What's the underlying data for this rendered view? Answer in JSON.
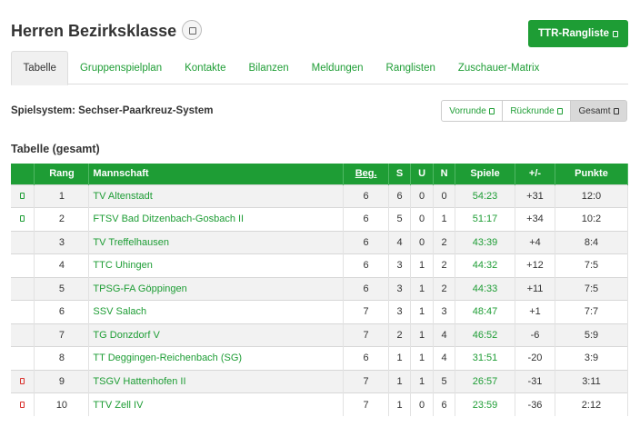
{
  "header": {
    "title": "Herren Bezirksklasse",
    "ttr_button_label": "TTR-Rangliste"
  },
  "tabs": [
    {
      "label": "Tabelle",
      "active": true
    },
    {
      "label": "Gruppenspielplan"
    },
    {
      "label": "Kontakte"
    },
    {
      "label": "Bilanzen"
    },
    {
      "label": "Meldungen"
    },
    {
      "label": "Ranglisten"
    },
    {
      "label": "Zuschauer-Matrix"
    }
  ],
  "spielsystem": "Spielsystem: Sechser-Paarkreuz-System",
  "filter": {
    "vorrunde": "Vorrunde",
    "rueckrunde": "Rückrunde",
    "gesamt": "Gesamt"
  },
  "section_title": "Tabelle (gesamt)",
  "table": {
    "columns": [
      "Rang",
      "Mannschaft",
      "Beg.",
      "S",
      "U",
      "N",
      "Spiele",
      "+/-",
      "Punkte"
    ],
    "rows": [
      {
        "rang": "1",
        "team": "TV Altenstadt",
        "beg": "6",
        "s": "6",
        "u": "0",
        "n": "0",
        "spiele": "54:23",
        "diff": "+31",
        "punkte": "12:0",
        "flag": "up"
      },
      {
        "rang": "2",
        "team": "FTSV Bad Ditzenbach-Gosbach II",
        "beg": "6",
        "s": "5",
        "u": "0",
        "n": "1",
        "spiele": "51:17",
        "diff": "+34",
        "punkte": "10:2",
        "flag": "up"
      },
      {
        "rang": "3",
        "team": "TV Treffelhausen",
        "beg": "6",
        "s": "4",
        "u": "0",
        "n": "2",
        "spiele": "43:39",
        "diff": "+4",
        "punkte": "8:4",
        "flag": ""
      },
      {
        "rang": "4",
        "team": "TTC Uhingen",
        "beg": "6",
        "s": "3",
        "u": "1",
        "n": "2",
        "spiele": "44:32",
        "diff": "+12",
        "punkte": "7:5",
        "flag": ""
      },
      {
        "rang": "5",
        "team": "TPSG-FA Göppingen",
        "beg": "6",
        "s": "3",
        "u": "1",
        "n": "2",
        "spiele": "44:33",
        "diff": "+11",
        "punkte": "7:5",
        "flag": ""
      },
      {
        "rang": "6",
        "team": "SSV Salach",
        "beg": "7",
        "s": "3",
        "u": "1",
        "n": "3",
        "spiele": "48:47",
        "diff": "+1",
        "punkte": "7:7",
        "flag": ""
      },
      {
        "rang": "7",
        "team": "TG Donzdorf V",
        "beg": "7",
        "s": "2",
        "u": "1",
        "n": "4",
        "spiele": "46:52",
        "diff": "-6",
        "punkte": "5:9",
        "flag": ""
      },
      {
        "rang": "8",
        "team": "TT Deggingen-Reichenbach (SG)",
        "beg": "6",
        "s": "1",
        "u": "1",
        "n": "4",
        "spiele": "31:51",
        "diff": "-20",
        "punkte": "3:9",
        "flag": ""
      },
      {
        "rang": "9",
        "team": "TSGV Hattenhofen II",
        "beg": "7",
        "s": "1",
        "u": "1",
        "n": "5",
        "spiele": "26:57",
        "diff": "-31",
        "punkte": "3:11",
        "flag": "down"
      },
      {
        "rang": "10",
        "team": "TTV Zell IV",
        "beg": "7",
        "s": "1",
        "u": "0",
        "n": "6",
        "spiele": "23:59",
        "diff": "-36",
        "punkte": "2:12",
        "flag": "down"
      }
    ]
  },
  "colors": {
    "accent": "#1e9d35",
    "promotion": "#1e9d35",
    "relegation": "#d9302c"
  }
}
